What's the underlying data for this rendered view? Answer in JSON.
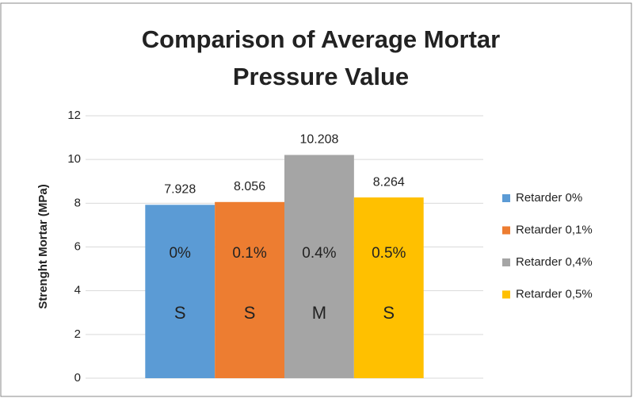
{
  "chart_data": {
    "type": "bar",
    "title": [
      "Comparison of  Average Mortar",
      "Pressure Value"
    ],
    "y_label": "Strenght Mortar  (MPa)",
    "categories": [
      null
    ],
    "series": [
      {
        "name": "Retarder 0%",
        "color": "#5b9bd5",
        "values": [
          7.928
        ],
        "notes": [
          "0%",
          "S"
        ]
      },
      {
        "name": "Retarder 0,1%",
        "color": "#ed7d31",
        "values": [
          8.056
        ],
        "notes": [
          "0.1%",
          "S"
        ]
      },
      {
        "name": "Retarder 0,4%",
        "color": "#a5a5a5",
        "values": [
          10.208
        ],
        "notes": [
          "0.4%",
          "M"
        ]
      },
      {
        "name": "Retarder 0,5%",
        "color": "#ffc000",
        "values": [
          8.264
        ],
        "notes": [
          "0.5%",
          "S"
        ]
      }
    ],
    "ylim": [
      0,
      12
    ],
    "yticks": [
      0,
      2,
      4,
      6,
      8,
      10,
      12
    ],
    "grid": true,
    "legend": "right"
  }
}
